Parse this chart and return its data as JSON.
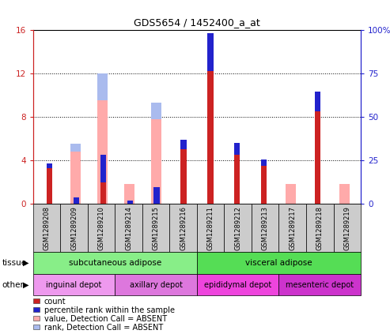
{
  "title": "GDS5654 / 1452400_a_at",
  "samples": [
    "GSM1289208",
    "GSM1289209",
    "GSM1289210",
    "GSM1289214",
    "GSM1289215",
    "GSM1289216",
    "GSM1289211",
    "GSM1289212",
    "GSM1289213",
    "GSM1289217",
    "GSM1289218",
    "GSM1289219"
  ],
  "red_values": [
    3.3,
    0.0,
    2.0,
    0.0,
    0.0,
    5.0,
    12.2,
    4.5,
    3.5,
    0.0,
    8.5,
    0.0
  ],
  "blue_values": [
    0.4,
    0.6,
    2.5,
    0.3,
    1.5,
    0.9,
    3.5,
    1.1,
    0.6,
    0.0,
    1.8,
    0.0
  ],
  "pink_values": [
    0.0,
    4.8,
    9.5,
    1.8,
    7.8,
    0.0,
    0.0,
    0.0,
    0.0,
    1.8,
    0.0,
    1.8
  ],
  "lightblue_values": [
    0.0,
    0.7,
    2.5,
    0.0,
    1.5,
    0.0,
    0.0,
    0.0,
    0.0,
    0.0,
    0.0,
    0.0
  ],
  "ylim_left": [
    0,
    16
  ],
  "ylim_right": [
    0,
    100
  ],
  "yticks_left": [
    0,
    4,
    8,
    12,
    16
  ],
  "ytick_labels_left": [
    "0",
    "4",
    "8",
    "12",
    "16"
  ],
  "yticks_right": [
    0,
    25,
    50,
    75,
    100
  ],
  "ytick_labels_right": [
    "0",
    "25",
    "50",
    "75",
    "100%"
  ],
  "tissue_groups": [
    {
      "label": "subcutaneous adipose",
      "start": 0,
      "end": 6,
      "color": "#88ee88"
    },
    {
      "label": "visceral adipose",
      "start": 6,
      "end": 12,
      "color": "#55dd55"
    }
  ],
  "other_groups": [
    {
      "label": "inguinal depot",
      "start": 0,
      "end": 3,
      "color": "#ee88ee"
    },
    {
      "label": "axillary depot",
      "start": 3,
      "end": 6,
      "color": "#ee88ee"
    },
    {
      "label": "epididymal depot",
      "start": 6,
      "end": 9,
      "color": "#ee44ee"
    },
    {
      "label": "mesenteric depot",
      "start": 9,
      "end": 12,
      "color": "#ee44ee"
    }
  ],
  "legend_items": [
    {
      "label": "count",
      "color": "#cc2222"
    },
    {
      "label": "percentile rank within the sample",
      "color": "#2222cc"
    },
    {
      "label": "value, Detection Call = ABSENT",
      "color": "#ffaaaa"
    },
    {
      "label": "rank, Detection Call = ABSENT",
      "color": "#aabbee"
    }
  ],
  "bar_color_red": "#cc2222",
  "bar_color_blue": "#2222cc",
  "bar_color_pink": "#ffaaaa",
  "bar_color_lightblue": "#aabbee",
  "plot_bg": "#ffffff",
  "cell_bg": "#cccccc",
  "grid_color": "#000000"
}
